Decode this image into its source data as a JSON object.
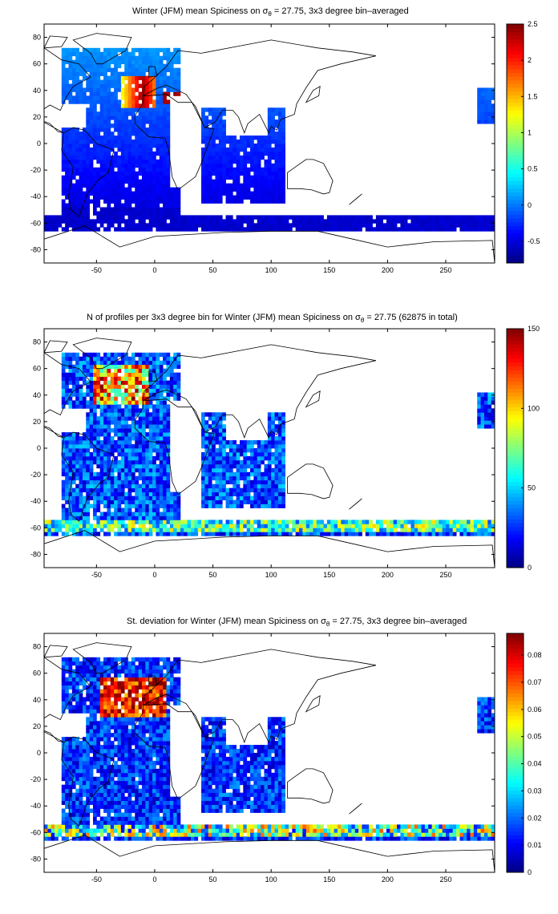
{
  "chart_data": [
    {
      "type": "heatmap",
      "title": {
        "pre": "Winter (JFM) mean Spiciness on σ",
        "sub": "θ",
        "post": " = 27.75, 3x3 degree bin–averaged"
      },
      "xlim": [
        -95,
        292
      ],
      "ylim": [
        -90,
        90
      ],
      "x_ticks": [
        -50,
        0,
        50,
        100,
        150,
        200,
        250
      ],
      "y_ticks": [
        80,
        60,
        40,
        20,
        0,
        -20,
        -40,
        -60,
        -80
      ],
      "colorbar": {
        "range": [
          -0.8,
          2.5
        ],
        "ticks": [
          "2.5",
          "2",
          "1.5",
          "1",
          "0.5",
          "0",
          "-0.5"
        ],
        "tick_values": [
          2.5,
          2,
          1.5,
          1,
          0.5,
          0,
          -0.5
        ]
      },
      "grid": false
    },
    {
      "type": "heatmap",
      "title": {
        "pre": "N of profiles per 3x3 degree bin for Winter (JFM) mean Spiciness on σ",
        "sub": "θ",
        "post": " = 27.75 (62875 in total)"
      },
      "xlim": [
        -95,
        292
      ],
      "ylim": [
        -90,
        90
      ],
      "x_ticks": [
        -50,
        0,
        50,
        100,
        150,
        200,
        250
      ],
      "y_ticks": [
        80,
        60,
        40,
        20,
        0,
        -20,
        -40,
        -60,
        -80
      ],
      "colorbar": {
        "range": [
          0,
          150
        ],
        "ticks": [
          "150",
          "100",
          "50",
          "0"
        ],
        "tick_values": [
          150,
          100,
          50,
          0
        ]
      },
      "grid": false
    },
    {
      "type": "heatmap",
      "title": {
        "pre": "St. deviation for Winter (JFM) mean Spiciness on σ",
        "sub": "θ",
        "post": " = 27.75, 3x3 degree bin–averaged"
      },
      "xlim": [
        -95,
        292
      ],
      "ylim": [
        -90,
        90
      ],
      "x_ticks": [
        -50,
        0,
        50,
        100,
        150,
        200,
        250
      ],
      "y_ticks": [
        80,
        60,
        40,
        20,
        0,
        -20,
        -40,
        -60,
        -80
      ],
      "colorbar": {
        "range": [
          0,
          0.088
        ],
        "ticks": [
          "0.08",
          "0.07",
          "0.06",
          "0.05",
          "0.04",
          "0.03",
          "0.02",
          "0.01",
          "0"
        ],
        "tick_values": [
          0.08,
          0.07,
          0.06,
          0.05,
          0.04,
          0.03,
          0.02,
          0.01,
          0
        ]
      },
      "grid": false
    }
  ]
}
